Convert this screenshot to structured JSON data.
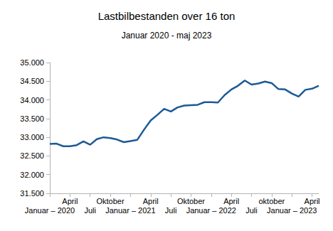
{
  "chart_data": {
    "type": "line",
    "title": "Lastbilbestanden over 16 ton",
    "subtitle": "Januar 2020 - maj 2023",
    "categories": [
      "Januar – 2020",
      null,
      null,
      "April",
      null,
      null,
      "Juli",
      null,
      null,
      "Oktober",
      null,
      null,
      "Januar – 2021",
      null,
      null,
      "April",
      null,
      null,
      "Juli",
      null,
      null,
      "Oktober",
      null,
      null,
      "Januar – 2022",
      null,
      null,
      "April",
      null,
      null,
      "Juli",
      null,
      null,
      "oktober",
      null,
      null,
      "Januar – 2023",
      null,
      null,
      "April",
      null
    ],
    "values": [
      32820,
      32830,
      32760,
      32760,
      32790,
      32890,
      32800,
      32950,
      33000,
      32980,
      32940,
      32870,
      32900,
      32930,
      33200,
      33450,
      33600,
      33760,
      33690,
      33800,
      33850,
      33860,
      33870,
      33940,
      33940,
      33930,
      34130,
      34280,
      34380,
      34520,
      34410,
      34440,
      34490,
      34450,
      34290,
      34280,
      34170,
      34090,
      34270,
      34300,
      34380
    ],
    "color": "#1c5a96",
    "ylim": [
      31500,
      35000
    ],
    "yticks": [
      {
        "value": 31500,
        "label": "31.500"
      },
      {
        "value": 32000,
        "label": "32.000"
      },
      {
        "value": 32500,
        "label": "32.500"
      },
      {
        "value": 33000,
        "label": "33.000"
      },
      {
        "value": 33500,
        "label": "33.500"
      },
      {
        "value": 34000,
        "label": "34.000"
      },
      {
        "value": 34500,
        "label": "34.500"
      },
      {
        "value": 35000,
        "label": "35.000"
      }
    ],
    "grid": false
  }
}
